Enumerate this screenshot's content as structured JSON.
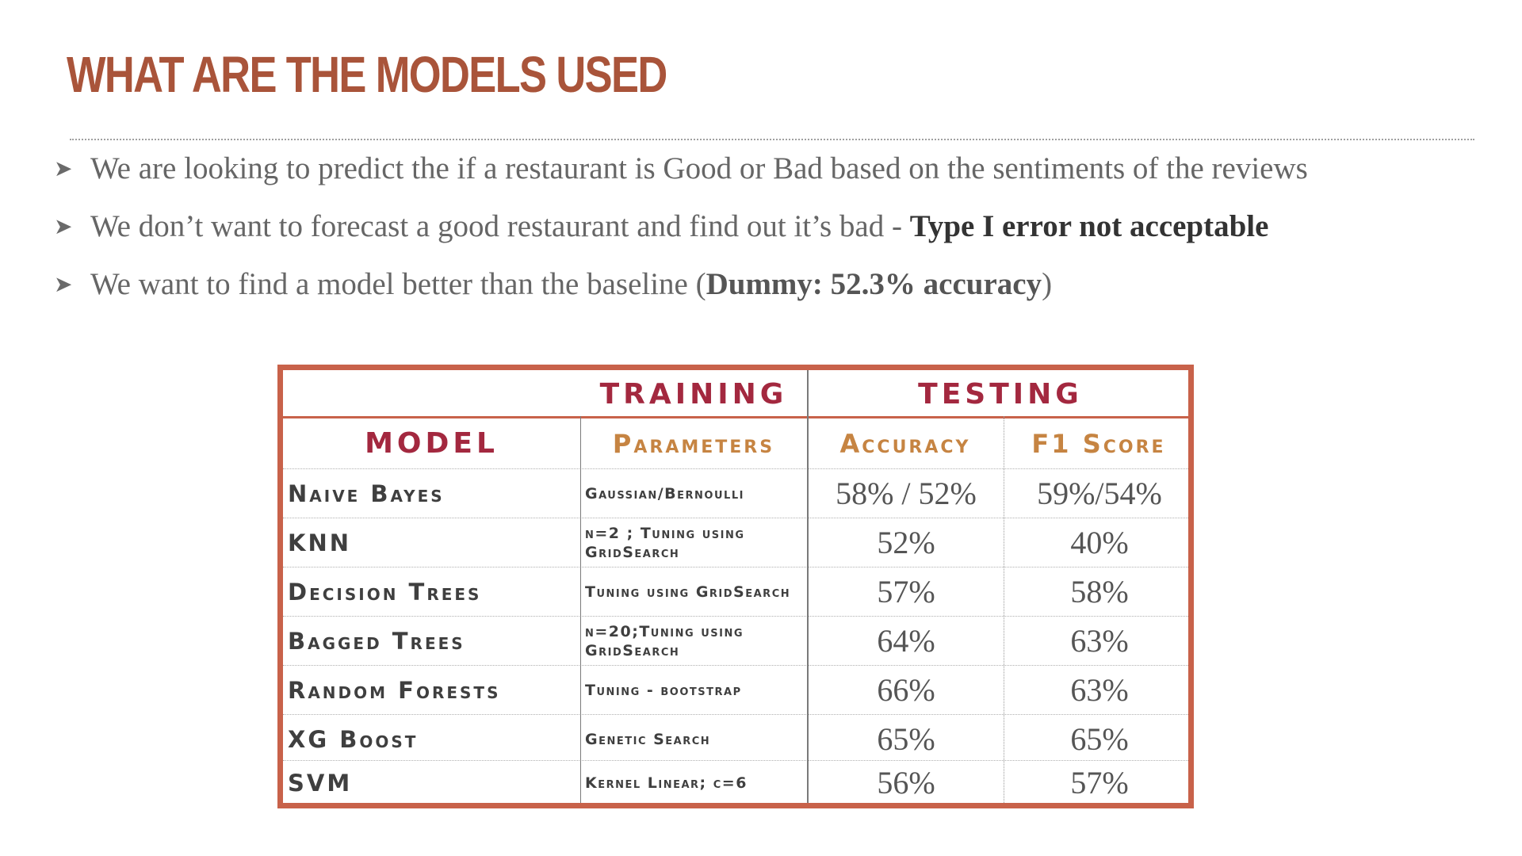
{
  "slide": {
    "title": "WHAT ARE THE MODELS USED"
  },
  "bullets": [
    {
      "pre": "We are looking to predict the if a restaurant is Good or Bad based on the sentiments of the reviews",
      "strong": "",
      "post": ""
    },
    {
      "pre": "We don’t want to forecast a good restaurant and find out it’s bad - ",
      "strong": "Type I error not acceptable",
      "post": ""
    },
    {
      "pre": "We want to find a model better than the baseline (",
      "strong": "Dummy: 52.3% accuracy",
      "post": ")"
    }
  ],
  "table": {
    "group_training": "TRAINING",
    "group_testing": "TESTING",
    "headers": {
      "model": "MODEL",
      "parameters": "Parameters",
      "accuracy": "Accuracy",
      "f1": "F1 Score"
    },
    "rows": [
      {
        "model": "Naive Bayes",
        "params": "Gaussian/Bernoulli",
        "accuracy": "58% / 52%",
        "f1": "59%/54%"
      },
      {
        "model": "KNN",
        "params": "n=2 ; Tuning using GridSearch",
        "accuracy": "52%",
        "f1": "40%"
      },
      {
        "model": "Decision Trees",
        "params": "Tuning using GridSearch",
        "accuracy": "57%",
        "f1": "58%"
      },
      {
        "model": "Bagged Trees",
        "params": "n=20;Tuning using GridSearch",
        "accuracy": "64%",
        "f1": "63%"
      },
      {
        "model": "Random Forests",
        "params": "Tuning - bootstrap",
        "accuracy": "66%",
        "f1": "63%"
      },
      {
        "model": "XG Boost",
        "params": "Genetic Search",
        "accuracy": "65%",
        "f1": "65%"
      },
      {
        "model": "SVM",
        "params": "Kernel Linear; c=6",
        "accuracy": "56%",
        "f1": "57%"
      }
    ]
  }
}
